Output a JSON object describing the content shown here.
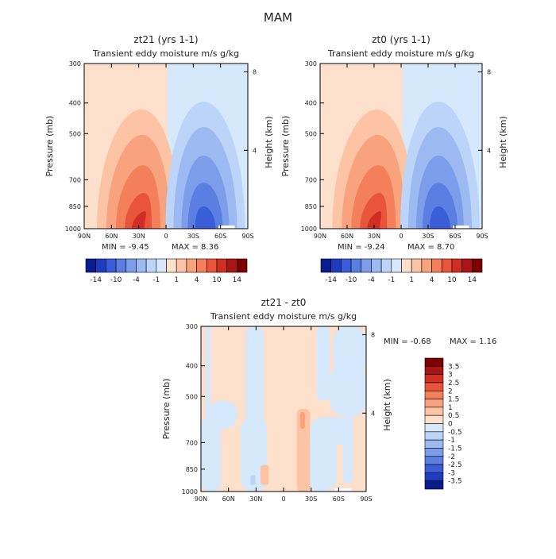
{
  "figure_title": "MAM",
  "chart_data": [
    {
      "type": "heatmap",
      "title": "zt21 (yrs 1-1)",
      "subtitle": "Transient eddy moisture m/s g/kg",
      "xlabel": "",
      "ylabel": "Pressure (mb)",
      "y2label": "Height (km)",
      "x_ticks": [
        "90N",
        "60N",
        "30N",
        "0",
        "30S",
        "60S",
        "90S"
      ],
      "y_ticks": [
        "300",
        "400",
        "500",
        "700",
        "850",
        "1000"
      ],
      "y_tick_values": [
        300,
        400,
        500,
        700,
        850,
        1000
      ],
      "y2_ticks": [
        "8",
        "4"
      ],
      "y2_tick_values": [
        8,
        4
      ],
      "min_text": "MIN =  -9.45",
      "max_text": "MAX =   8.36",
      "min": -9.45,
      "max": 8.36,
      "colorbar_labels": [
        "-14",
        "-10",
        "-4",
        "-1",
        "1",
        "4",
        "10",
        "14"
      ]
    },
    {
      "type": "heatmap",
      "title": "zt0 (yrs 1-1)",
      "subtitle": "Transient eddy moisture m/s g/kg",
      "xlabel": "",
      "ylabel": "Pressure (mb)",
      "y2label": "Height (km)",
      "x_ticks": [
        "90N",
        "60N",
        "30N",
        "0",
        "30S",
        "60S",
        "90S"
      ],
      "y_ticks": [
        "300",
        "400",
        "500",
        "700",
        "850",
        "1000"
      ],
      "y_tick_values": [
        300,
        400,
        500,
        700,
        850,
        1000
      ],
      "y2_ticks": [
        "8",
        "4"
      ],
      "y2_tick_values": [
        8,
        4
      ],
      "min_text": "MIN =  -9.24",
      "max_text": "MAX =   8.70",
      "min": -9.24,
      "max": 8.7,
      "colorbar_labels": [
        "-14",
        "-10",
        "-4",
        "-1",
        "1",
        "4",
        "10",
        "14"
      ]
    },
    {
      "type": "heatmap",
      "title": "zt21 - zt0",
      "subtitle": "Transient eddy moisture m/s g/kg",
      "xlabel": "",
      "ylabel": "Pressure (mb)",
      "y2label": "Height (km)",
      "x_ticks": [
        "90N",
        "60N",
        "30N",
        "0",
        "30S",
        "60S",
        "90S"
      ],
      "y_ticks": [
        "300",
        "400",
        "500",
        "700",
        "850",
        "1000"
      ],
      "y_tick_values": [
        300,
        400,
        500,
        700,
        850,
        1000
      ],
      "y2_ticks": [
        "8",
        "4"
      ],
      "y2_tick_values": [
        8,
        4
      ],
      "min_text": "MIN =  -0.68",
      "max_text": "MAX =   1.16",
      "min": -0.68,
      "max": 1.16,
      "colorbar_labels": [
        "3.5",
        "3",
        "2.5",
        "2",
        "1.5",
        "1",
        "0.5",
        "0",
        "-0.5",
        "-1",
        "-1.5",
        "-2",
        "-2.5",
        "-3",
        "-3.5"
      ]
    }
  ],
  "colors": {
    "pos": [
      "#fde0cc",
      "#fcc4a4",
      "#f9a27e",
      "#f47f5b",
      "#e8553a",
      "#d02e22",
      "#a81515",
      "#7f0000"
    ],
    "neg": [
      "#d6e8fb",
      "#bcd4f7",
      "#9cbaf1",
      "#7c9eea",
      "#5a7ee2",
      "#3a5ed8",
      "#1f3cc0",
      "#0a1c8c"
    ],
    "diff_pos": [
      "#fde0cc",
      "#fcc4a4",
      "#f9a27e",
      "#f47f5b",
      "#e8553a",
      "#d02e22",
      "#a81515",
      "#7f0000"
    ],
    "diff_neg": [
      "#d6e8fb",
      "#bcd4f7",
      "#9cbaf1",
      "#7c9eea",
      "#5a7ee2",
      "#3a5ed8",
      "#1f3cc0",
      "#0a1c8c"
    ]
  }
}
